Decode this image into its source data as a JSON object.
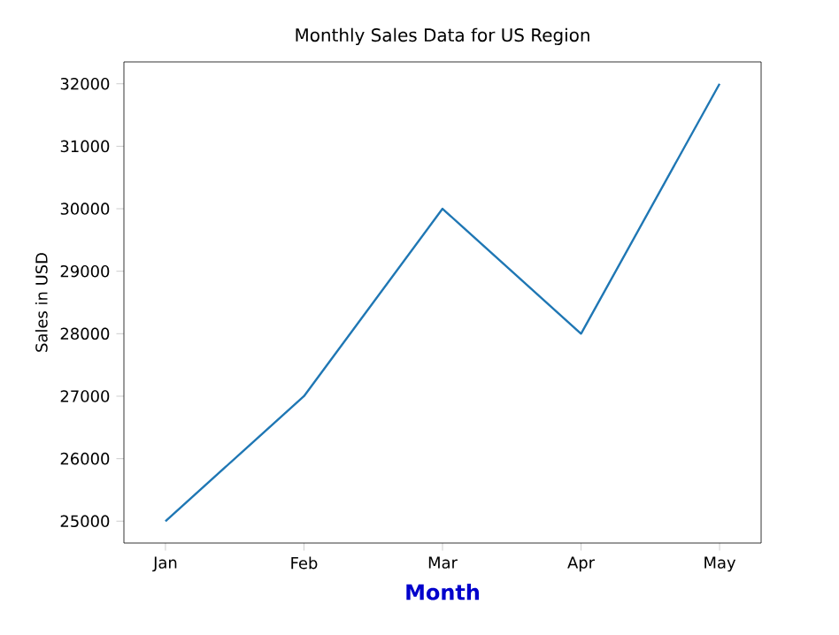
{
  "chart_data": {
    "type": "line",
    "title": "Monthly Sales Data for US Region",
    "xlabel": "Month",
    "ylabel": "Sales in USD",
    "categories": [
      "Jan",
      "Feb",
      "Mar",
      "Apr",
      "May"
    ],
    "values": [
      25000,
      27000,
      30000,
      28000,
      32000
    ],
    "color": "#1f77b4",
    "ylim": [
      24650,
      32350
    ],
    "yticks": [
      25000,
      26000,
      27000,
      28000,
      29000,
      30000,
      31000,
      32000
    ]
  }
}
